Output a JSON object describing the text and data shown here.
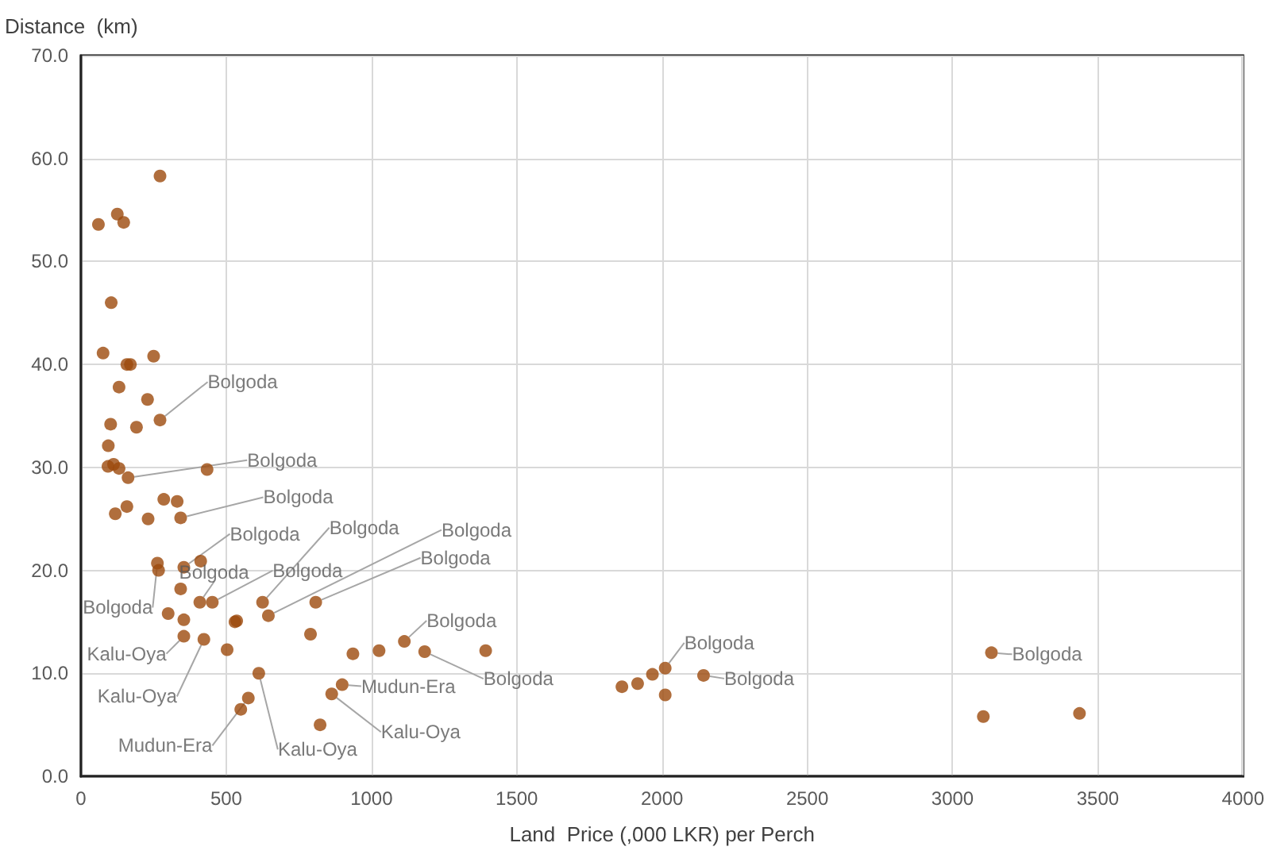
{
  "chart_data": {
    "type": "scatter",
    "xlabel": "Land  Price (,000 LKR) per Perch",
    "ylabel": "Distance  (km)",
    "xlim": [
      0,
      4000
    ],
    "xticks": [
      0,
      500,
      1000,
      1500,
      2000,
      2500,
      3000,
      3500,
      4000
    ],
    "ylim": [
      0,
      70
    ],
    "yticks": [
      {
        "value": 0,
        "label": "0.0"
      },
      {
        "value": 10,
        "label": "10.0"
      },
      {
        "value": 20,
        "label": "20.0"
      },
      {
        "value": 30,
        "label": "30.0"
      },
      {
        "value": 40,
        "label": "40.0"
      },
      {
        "value": 50,
        "label": "50.0"
      },
      {
        "value": 60,
        "label": "60.0"
      },
      {
        "value": 70,
        "label": "70.0"
      }
    ],
    "grid": true,
    "marker": "circle",
    "series": [
      {
        "color": "#9c4a0c",
        "x": [
          60,
          125,
          147,
          272,
          104,
          76,
          250,
          158,
          170,
          131,
          229,
          272,
          102,
          191,
          94,
          93,
          112,
          131,
          162,
          434,
          118,
          158,
          231,
          285,
          331,
          343,
          263,
          267,
          354,
          412,
          343,
          409,
          452,
          300,
          354,
          530,
          536,
          354,
          423,
          503,
          625,
          645,
          808,
          790,
          612,
          576,
          550,
          899,
          863,
          823,
          936,
          1026,
          1113,
          1183,
          1393,
          1862,
          1916,
          1967,
          2011,
          2011,
          2143,
          3134,
          3106,
          3437
        ],
        "values": [
          53.6,
          54.6,
          53.8,
          58.3,
          46.0,
          41.1,
          40.8,
          40.0,
          40.0,
          37.8,
          36.6,
          34.6,
          34.2,
          33.9,
          32.1,
          30.1,
          30.3,
          29.9,
          29.0,
          29.8,
          25.5,
          26.2,
          25.0,
          26.9,
          26.7,
          25.1,
          20.7,
          20.0,
          20.3,
          20.9,
          18.2,
          16.9,
          16.9,
          15.8,
          15.2,
          15.0,
          15.1,
          13.6,
          13.3,
          12.3,
          16.9,
          15.6,
          16.9,
          13.8,
          10.0,
          7.6,
          6.5,
          8.9,
          8.0,
          5.0,
          11.9,
          12.2,
          13.1,
          12.1,
          12.2,
          8.7,
          9.0,
          9.9,
          10.5,
          7.9,
          9.8,
          12.0,
          5.8,
          6.1
        ]
      }
    ],
    "annotations": [
      {
        "text": "Bolgoda",
        "x": 272,
        "y": 34.6
      },
      {
        "text": "Bolgoda",
        "x": 162,
        "y": 29.0
      },
      {
        "text": "Bolgoda",
        "x": 343,
        "y": 25.1
      },
      {
        "text": "Bolgoda",
        "x": 354,
        "y": 20.3
      },
      {
        "text": "Bolgoda",
        "x": 263,
        "y": 20.7
      },
      {
        "text": "Bolgoda",
        "x": 409,
        "y": 16.9
      },
      {
        "text": "Bolgoda",
        "x": 452,
        "y": 16.9
      },
      {
        "text": "Bolgoda",
        "x": 625,
        "y": 16.9
      },
      {
        "text": "Bolgoda",
        "x": 645,
        "y": 15.6
      },
      {
        "text": "Bolgoda",
        "x": 808,
        "y": 16.9
      },
      {
        "text": "Kalu-Oya",
        "x": 354,
        "y": 13.6
      },
      {
        "text": "Kalu-Oya",
        "x": 423,
        "y": 13.3
      },
      {
        "text": "Mudun-Era",
        "x": 576,
        "y": 7.6
      },
      {
        "text": "Kalu-Oya",
        "x": 612,
        "y": 10.0
      },
      {
        "text": "Mudun-Era",
        "x": 899,
        "y": 8.9
      },
      {
        "text": "Kalu-Oya",
        "x": 863,
        "y": 8.0
      },
      {
        "text": "Bolgoda",
        "x": 1113,
        "y": 13.1
      },
      {
        "text": "Bolgoda",
        "x": 1183,
        "y": 12.1
      },
      {
        "text": "Bolgoda",
        "x": 2011,
        "y": 10.5
      },
      {
        "text": "Bolgoda",
        "x": 2143,
        "y": 9.8
      },
      {
        "text": "Bolgoda",
        "x": 3134,
        "y": 12.0
      }
    ]
  }
}
